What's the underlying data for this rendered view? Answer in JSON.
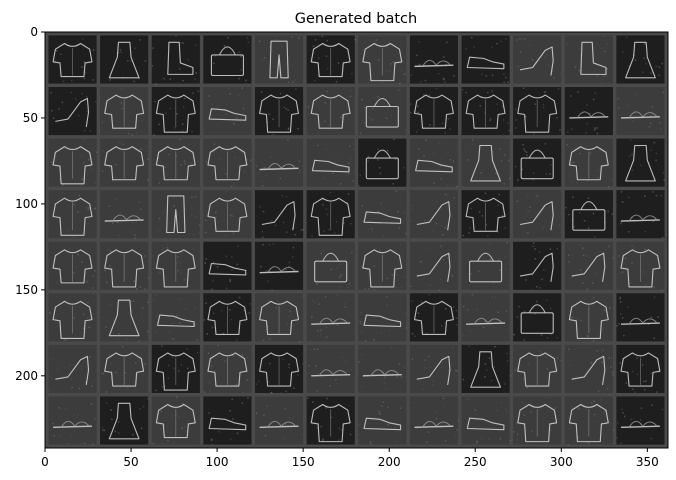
{
  "figure": {
    "title": "Generated batch"
  },
  "image": {
    "description_kind": "grid of generated grayscale fashion item thumbnails",
    "grid_rows": 8,
    "grid_cols": 12,
    "palette": {
      "background": "#3a3a3a",
      "separator": "#4a4a4a",
      "tile_dark": "#1e1e1e",
      "tile_mid": "#3c3c3c",
      "stroke_light": "#d8d8d8",
      "stroke_mid": "#9a9a9a"
    },
    "tiles": [
      "shirt",
      "dress",
      "boot",
      "bag",
      "trouser",
      "shirt",
      "coat",
      "sandal",
      "sneaker",
      "heel",
      "boot",
      "dress",
      "heel",
      "shirt",
      "coat",
      "sneaker",
      "coat",
      "shirt",
      "bag",
      "shirt",
      "shirt",
      "coat",
      "sandal",
      "sandal",
      "coat",
      "shirt",
      "shirt",
      "shirt",
      "sandal",
      "sneaker",
      "bag",
      "sneaker",
      "dress",
      "bag",
      "shirt",
      "dress",
      "coat",
      "sandal",
      "trouser",
      "shirt",
      "heel",
      "coat",
      "sneaker",
      "heel",
      "shirt",
      "heel",
      "bag",
      "sandal",
      "shirt",
      "coat",
      "coat",
      "sneaker",
      "sandal",
      "bag",
      "coat",
      "heel",
      "bag",
      "heel",
      "heel",
      "coat",
      "coat",
      "dress",
      "sneaker",
      "shirt",
      "shirt",
      "sandal",
      "sneaker",
      "shirt",
      "sandal",
      "bag",
      "coat",
      "sandal",
      "heel",
      "shirt",
      "coat",
      "shirt",
      "shirt",
      "sandal",
      "sandal",
      "heel",
      "dress",
      "shirt",
      "heel",
      "shirt",
      "sandal",
      "dress",
      "shirt",
      "sneaker",
      "sandal",
      "coat",
      "sneaker",
      "sandal",
      "sneaker",
      "coat",
      "coat",
      "sandal"
    ]
  },
  "axes": {
    "x_range": [
      0,
      362
    ],
    "y_range": [
      0,
      242
    ],
    "y_inverted": true,
    "x_ticks": [
      0,
      50,
      100,
      150,
      200,
      250,
      300,
      350
    ],
    "y_ticks": [
      0,
      50,
      100,
      150,
      200
    ],
    "x_tick_labels": [
      "0",
      "50",
      "100",
      "150",
      "200",
      "250",
      "300",
      "350"
    ],
    "y_tick_labels": [
      "0",
      "50",
      "100",
      "150",
      "200"
    ]
  }
}
